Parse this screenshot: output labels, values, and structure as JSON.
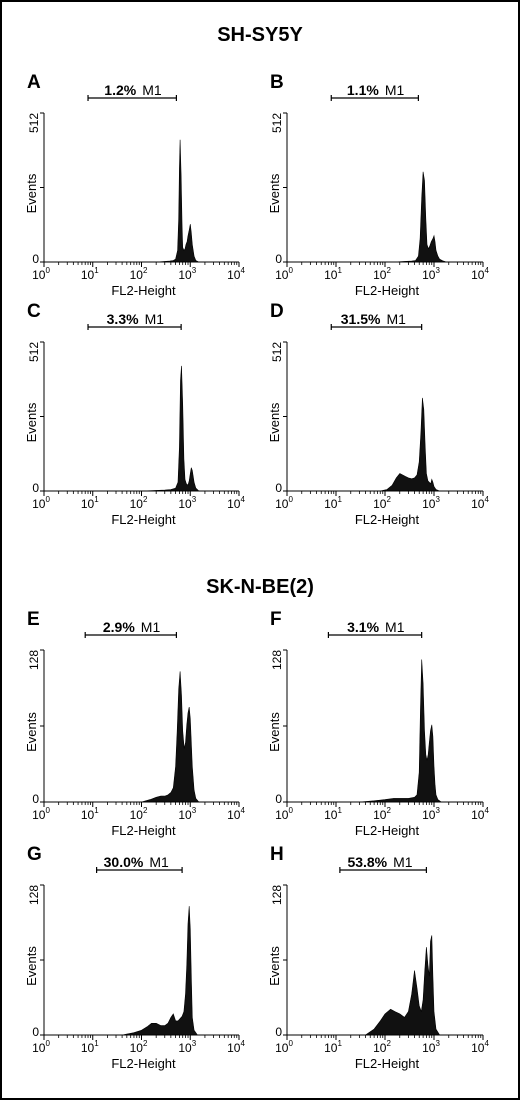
{
  "sections": [
    {
      "title": "SH-SY5Y",
      "panels": [
        0,
        1,
        2,
        3
      ]
    },
    {
      "title": "SK-N-BE(2)",
      "panels": [
        4,
        5,
        6,
        7
      ]
    }
  ],
  "chart_data": [
    {
      "type": "area",
      "letter": "A",
      "ymax_label": "512",
      "ylim": [
        0,
        512
      ],
      "ylabel": "Events",
      "xlabel": "FL2-Height",
      "xscale": "log",
      "xlim": [
        1,
        10000
      ],
      "x_ticks": [
        [
          "10",
          "0"
        ],
        [
          "10",
          "1"
        ],
        [
          "10",
          "2"
        ],
        [
          "10",
          "3"
        ],
        [
          "10",
          "4"
        ]
      ],
      "gate": {
        "percent": "1.2%",
        "name": "M1",
        "from": 8,
        "to": 520
      },
      "x": [
        200,
        300,
        380,
        450,
        500,
        550,
        580,
        600,
        620,
        650,
        680,
        700,
        740,
        780,
        820,
        860,
        900,
        950,
        1000,
        1050,
        1100,
        1200,
        1300,
        1500
      ],
      "y": [
        0,
        2,
        3,
        5,
        10,
        40,
        150,
        320,
        420,
        300,
        120,
        50,
        40,
        45,
        60,
        70,
        90,
        110,
        130,
        100,
        60,
        20,
        5,
        0
      ]
    },
    {
      "type": "area",
      "letter": "B",
      "ymax_label": "512",
      "ylim": [
        0,
        512
      ],
      "ylabel": "Events",
      "xlabel": "FL2-Height",
      "xscale": "log",
      "xlim": [
        1,
        10000
      ],
      "x_ticks": [
        [
          "10",
          "0"
        ],
        [
          "10",
          "1"
        ],
        [
          "10",
          "2"
        ],
        [
          "10",
          "3"
        ],
        [
          "10",
          "4"
        ]
      ],
      "gate": {
        "percent": "1.1%",
        "name": "M1",
        "from": 8,
        "to": 480
      },
      "x": [
        150,
        250,
        350,
        420,
        480,
        520,
        560,
        600,
        640,
        680,
        720,
        770,
        820,
        880,
        950,
        1000,
        1050,
        1100,
        1200,
        1300,
        1500,
        1800
      ],
      "y": [
        0,
        2,
        3,
        5,
        20,
        80,
        220,
        310,
        280,
        150,
        60,
        45,
        55,
        70,
        80,
        90,
        70,
        40,
        20,
        10,
        4,
        0
      ]
    },
    {
      "type": "area",
      "letter": "C",
      "ymax_label": "512",
      "ylim": [
        0,
        512
      ],
      "ylabel": "Events",
      "xlabel": "FL2-Height",
      "xscale": "log",
      "xlim": [
        1,
        10000
      ],
      "x_ticks": [
        [
          "10",
          "0"
        ],
        [
          "10",
          "1"
        ],
        [
          "10",
          "2"
        ],
        [
          "10",
          "3"
        ],
        [
          "10",
          "4"
        ]
      ],
      "gate": {
        "percent": "3.3%",
        "name": "M1",
        "from": 8,
        "to": 650
      },
      "x": [
        100,
        200,
        300,
        400,
        500,
        560,
        600,
        630,
        660,
        700,
        740,
        780,
        830,
        900,
        950,
        1000,
        1050,
        1100,
        1200,
        1300,
        1500
      ],
      "y": [
        0,
        2,
        3,
        5,
        10,
        30,
        150,
        380,
        430,
        300,
        110,
        40,
        25,
        20,
        35,
        60,
        80,
        70,
        30,
        10,
        0
      ]
    },
    {
      "type": "area",
      "letter": "D",
      "ymax_label": "512",
      "ylim": [
        0,
        512
      ],
      "ylabel": "Events",
      "xlabel": "FL2-Height",
      "xscale": "log",
      "xlim": [
        1,
        10000
      ],
      "x_ticks": [
        [
          "10",
          "0"
        ],
        [
          "10",
          "1"
        ],
        [
          "10",
          "2"
        ],
        [
          "10",
          "3"
        ],
        [
          "10",
          "4"
        ]
      ],
      "gate": {
        "percent": "31.5%",
        "name": "M1",
        "from": 8,
        "to": 560
      },
      "x": [
        80,
        110,
        140,
        170,
        200,
        230,
        260,
        300,
        350,
        400,
        450,
        500,
        540,
        580,
        620,
        660,
        700,
        750,
        800,
        860,
        900,
        950,
        1000,
        1100,
        1300
      ],
      "y": [
        0,
        5,
        20,
        45,
        60,
        55,
        50,
        45,
        42,
        45,
        55,
        100,
        200,
        320,
        280,
        150,
        60,
        35,
        30,
        25,
        40,
        30,
        15,
        5,
        0
      ]
    },
    {
      "type": "area",
      "letter": "E",
      "ymax_label": "128",
      "ylim": [
        0,
        128
      ],
      "ylabel": "Events",
      "xlabel": "FL2-Height",
      "xscale": "log",
      "xlim": [
        1,
        10000
      ],
      "x_ticks": [
        [
          "10",
          "0"
        ],
        [
          "10",
          "1"
        ],
        [
          "10",
          "2"
        ],
        [
          "10",
          "3"
        ],
        [
          "10",
          "4"
        ]
      ],
      "gate": {
        "percent": "2.9%",
        "name": "M1",
        "from": 7,
        "to": 520
      },
      "x": [
        100,
        150,
        200,
        250,
        300,
        350,
        400,
        450,
        500,
        540,
        580,
        620,
        660,
        700,
        750,
        800,
        850,
        900,
        950,
        1000,
        1050,
        1100,
        1200,
        1300,
        1500
      ],
      "y": [
        0,
        2,
        4,
        5,
        5,
        6,
        8,
        12,
        30,
        60,
        95,
        110,
        90,
        60,
        45,
        50,
        65,
        75,
        80,
        70,
        50,
        30,
        10,
        3,
        0
      ]
    },
    {
      "type": "area",
      "letter": "F",
      "ymax_label": "128",
      "ylim": [
        0,
        128
      ],
      "ylabel": "Events",
      "xlabel": "FL2-Height",
      "xscale": "log",
      "xlim": [
        1,
        10000
      ],
      "x_ticks": [
        [
          "10",
          "0"
        ],
        [
          "10",
          "1"
        ],
        [
          "10",
          "2"
        ],
        [
          "10",
          "3"
        ],
        [
          "10",
          "4"
        ]
      ],
      "gate": {
        "percent": "3.1%",
        "name": "M1",
        "from": 7,
        "to": 560
      },
      "x": [
        30,
        60,
        100,
        150,
        200,
        300,
        400,
        450,
        500,
        530,
        560,
        600,
        640,
        680,
        720,
        760,
        800,
        850,
        900,
        950,
        1000,
        1050,
        1100,
        1200,
        1400
      ],
      "y": [
        0,
        1,
        2,
        3,
        3,
        3,
        4,
        6,
        25,
        80,
        120,
        100,
        60,
        40,
        35,
        40,
        50,
        60,
        65,
        55,
        30,
        15,
        6,
        2,
        0
      ]
    },
    {
      "type": "area",
      "letter": "G",
      "ymax_label": "128",
      "ylim": [
        0,
        128
      ],
      "ylabel": "Events",
      "xlabel": "FL2-Height",
      "xscale": "log",
      "xlim": [
        1,
        10000
      ],
      "x_ticks": [
        [
          "10",
          "0"
        ],
        [
          "10",
          "1"
        ],
        [
          "10",
          "2"
        ],
        [
          "10",
          "3"
        ],
        [
          "10",
          "4"
        ]
      ],
      "gate": {
        "percent": "30.0%",
        "name": "M1",
        "from": 12,
        "to": 680
      },
      "x": [
        40,
        70,
        100,
        130,
        160,
        200,
        250,
        300,
        350,
        400,
        450,
        500,
        560,
        620,
        680,
        740,
        800,
        850,
        900,
        950,
        1000,
        1050,
        1100,
        1200,
        1400
      ],
      "y": [
        0,
        2,
        4,
        7,
        10,
        10,
        8,
        8,
        10,
        15,
        18,
        12,
        12,
        14,
        16,
        20,
        35,
        60,
        95,
        110,
        90,
        50,
        15,
        4,
        0
      ]
    },
    {
      "type": "area",
      "letter": "H",
      "ymax_label": "128",
      "ylim": [
        0,
        128
      ],
      "ylabel": "Events",
      "xlabel": "FL2-Height",
      "xscale": "log",
      "xlim": [
        1,
        10000
      ],
      "x_ticks": [
        [
          "10",
          "0"
        ],
        [
          "10",
          "1"
        ],
        [
          "10",
          "2"
        ],
        [
          "10",
          "3"
        ],
        [
          "10",
          "4"
        ]
      ],
      "gate": {
        "percent": "53.8%",
        "name": "M1",
        "from": 12,
        "to": 700
      },
      "x": [
        40,
        60,
        80,
        100,
        130,
        160,
        200,
        250,
        300,
        350,
        400,
        450,
        500,
        550,
        600,
        650,
        700,
        750,
        800,
        850,
        900,
        950,
        1000,
        1100,
        1300
      ],
      "y": [
        0,
        5,
        12,
        18,
        22,
        20,
        18,
        15,
        20,
        35,
        55,
        40,
        25,
        20,
        30,
        55,
        75,
        60,
        50,
        80,
        85,
        50,
        20,
        5,
        0
      ]
    }
  ]
}
